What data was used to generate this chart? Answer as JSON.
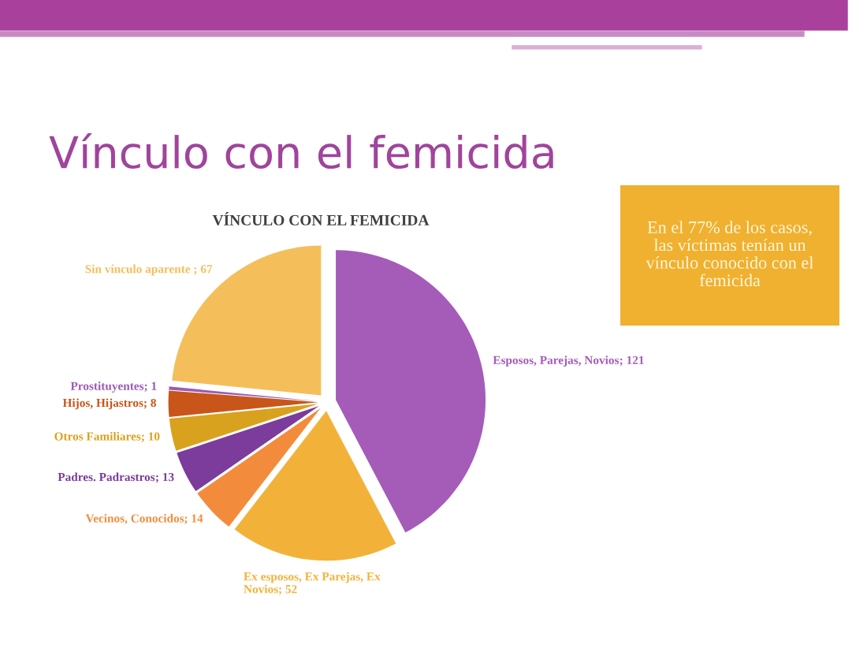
{
  "chart_data": {
    "type": "pie",
    "title": "Vínculo con el femicida",
    "subtitle": "VÍNCULO CON EL FEMICIDA",
    "categories": [
      "Esposos, Parejas, Novios",
      "Ex esposos, Ex Parejas, Ex Novios",
      "Vecinos, Conocidos",
      "Padres. Padrastros",
      "Otros Familiares",
      "Hijos, Hijastros",
      "Prostituyentes",
      "Sin vínculo aparente"
    ],
    "values": [
      121,
      52,
      14,
      13,
      10,
      8,
      1,
      67
    ],
    "colors": [
      "#a45cb8",
      "#f2b23a",
      "#f28c3c",
      "#7b3c9c",
      "#d9a21e",
      "#c8561a",
      "#9b5bb5",
      "#f4bf5a"
    ],
    "value_labels": [
      "; 121",
      "; 52",
      "; 14",
      "; 13",
      "; 10",
      "; 8",
      "; 1",
      " ; 67"
    ],
    "annotations": [
      "En el 77% de los casos, las víctimas tenían un vínculo conocido con el femicida"
    ]
  }
}
